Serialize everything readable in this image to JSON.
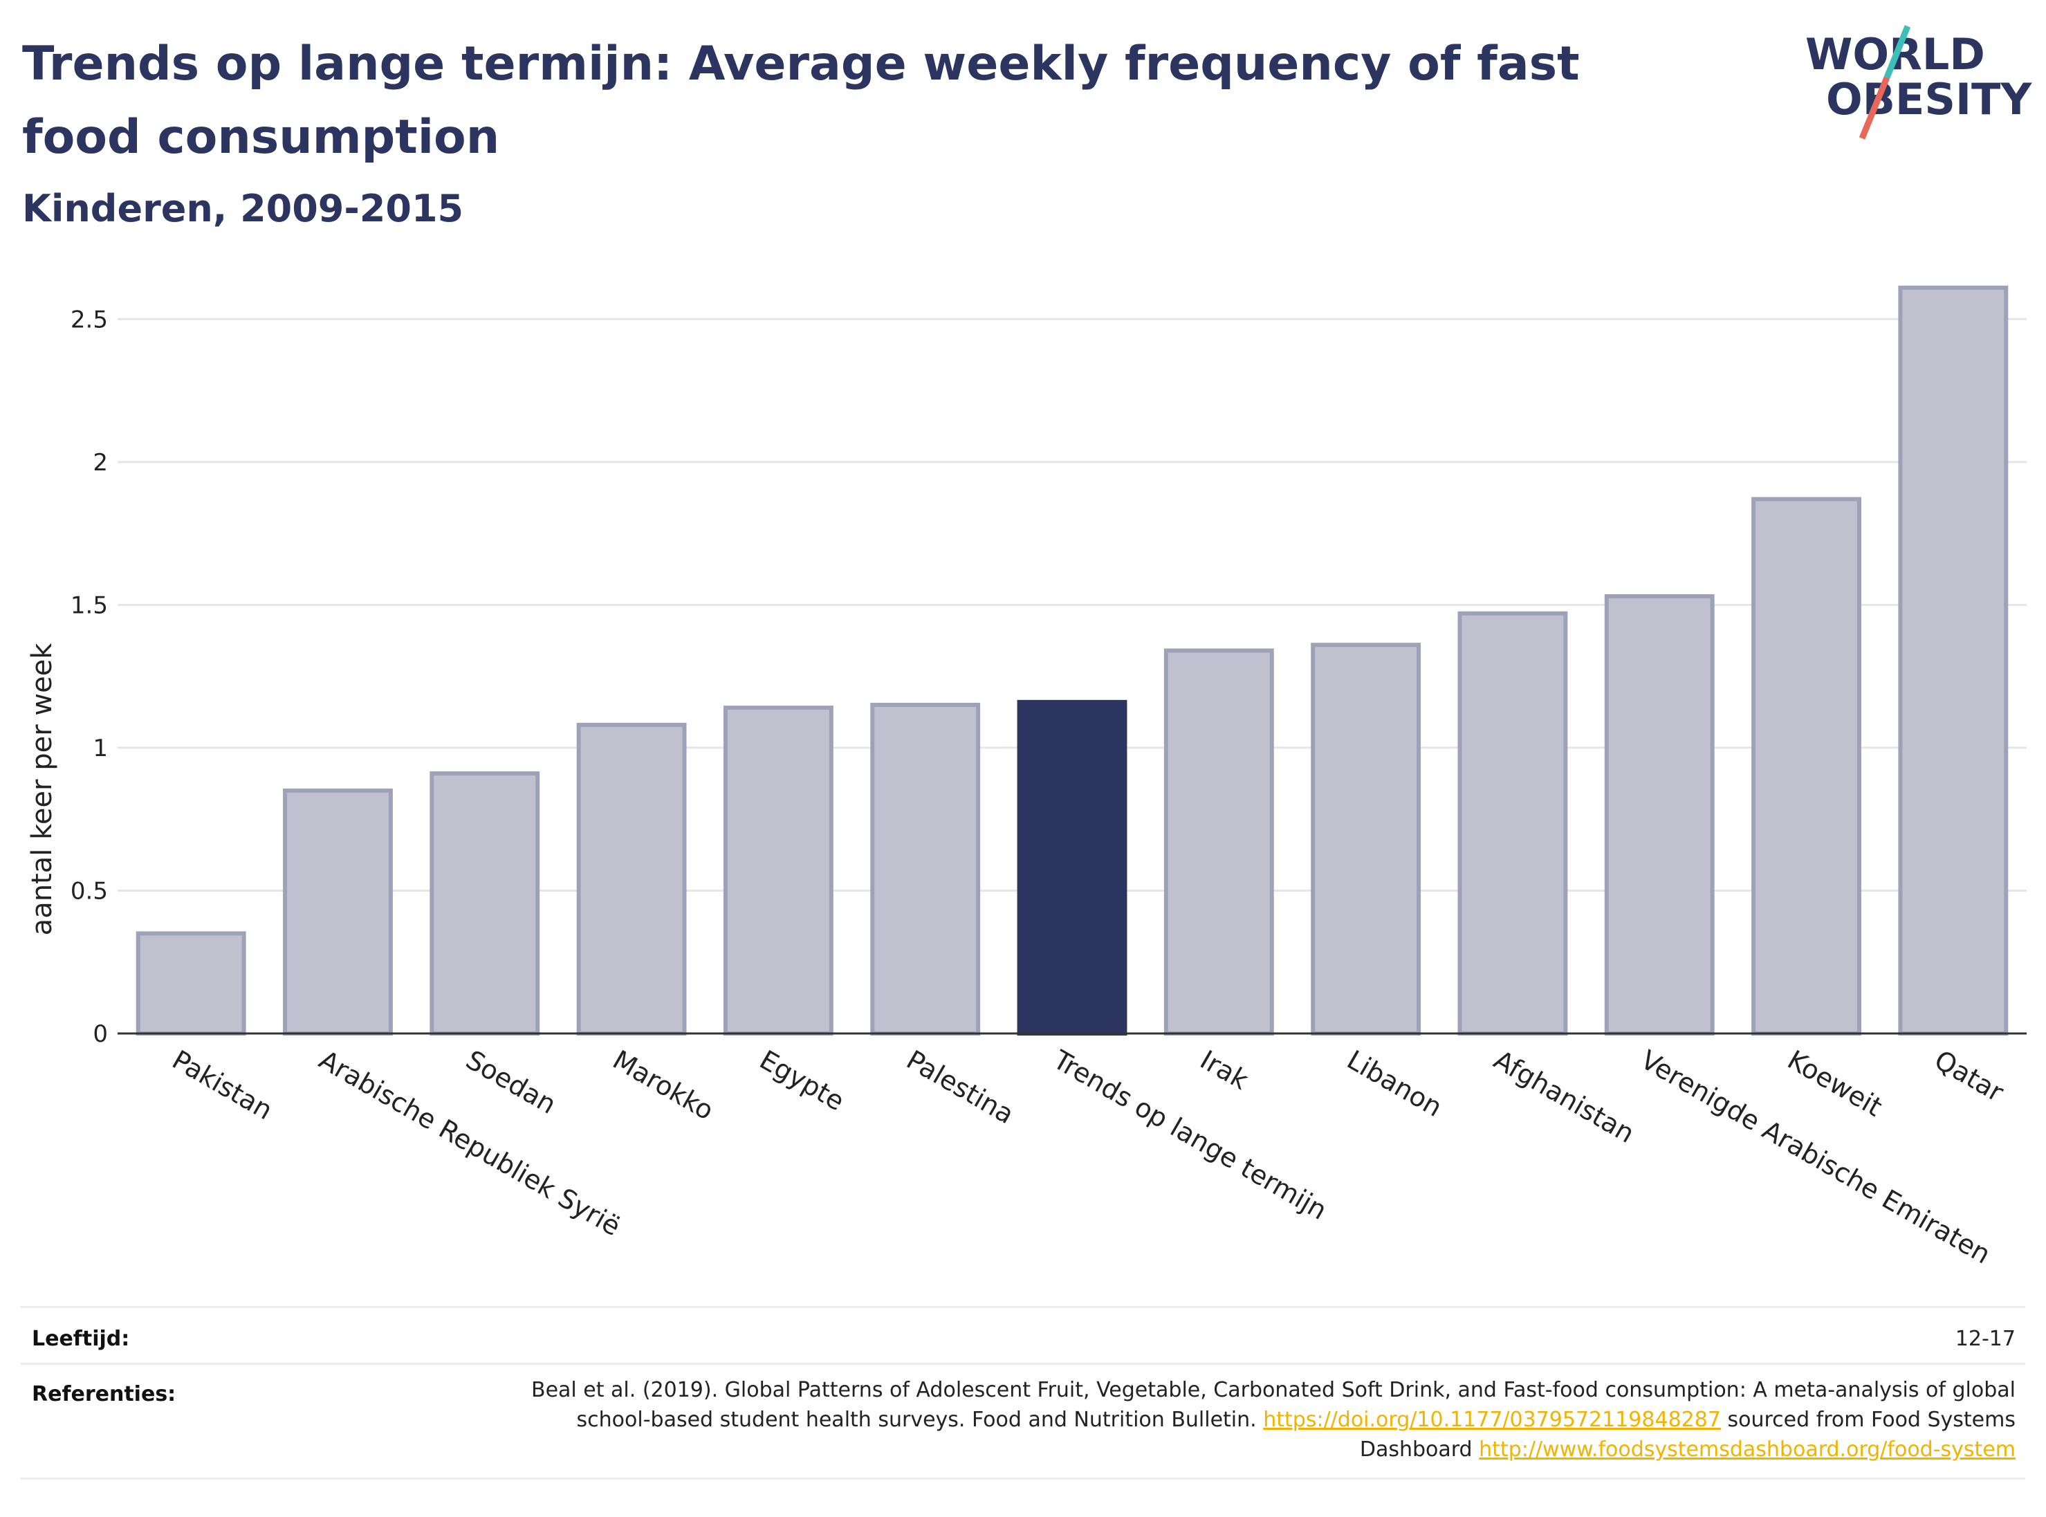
{
  "title": "Trends op lange termijn: Average weekly frequency of fast food consumption",
  "subtitle": "Kinderen, 2009-2015",
  "logo": {
    "line1": "WORLD",
    "line2": "OBESITY",
    "colors": {
      "text": "#2b3560",
      "teal": "#3bbfb6",
      "red": "#e5685a"
    }
  },
  "chart_data": {
    "type": "bar",
    "title": "",
    "ylabel": "aantal keer per week",
    "xlabel": "",
    "ylim": [
      0,
      2.6
    ],
    "yticks": [
      0,
      0.5,
      1,
      1.5,
      2,
      2.5
    ],
    "ytick_labels": [
      "0",
      "0.5",
      "1",
      "1.5",
      "2",
      "2.5"
    ],
    "grid": true,
    "categories": [
      "Pakistan",
      "Arabische Republiek Syrië",
      "Soedan",
      "Marokko",
      "Egypte",
      "Palestina",
      "Trends op lange termijn",
      "Irak",
      "Libanon",
      "Afghanistan",
      "Verenigde Arabische Emiraten",
      "Koeweit",
      "Qatar"
    ],
    "values": [
      0.35,
      0.85,
      0.91,
      1.08,
      1.14,
      1.15,
      1.16,
      1.34,
      1.36,
      1.47,
      1.53,
      1.87,
      2.61
    ],
    "highlight": "Trends op lange termijn",
    "colors": {
      "bar": "#bfc2ce",
      "bar_edge": "#9da2b8",
      "highlight": "#2b3560"
    }
  },
  "footer": {
    "age_label": "Leeftijd:",
    "age_value": "12-17",
    "ref_label": "Referenties:",
    "ref_text1": "Beal et al. (2019). Global Patterns of Adolescent Fruit, Vegetable, Carbonated Soft Drink, and Fast-food consumption: A meta-analysis of global school-based student health surveys. Food and Nutrition Bulletin.",
    "ref_link1": "https://doi.org/10.1177/0379572119848287",
    "ref_text2": "sourced from Food Systems Dashboard",
    "ref_link2": "http://www.foodsystemsdashboard.org/food-system"
  }
}
